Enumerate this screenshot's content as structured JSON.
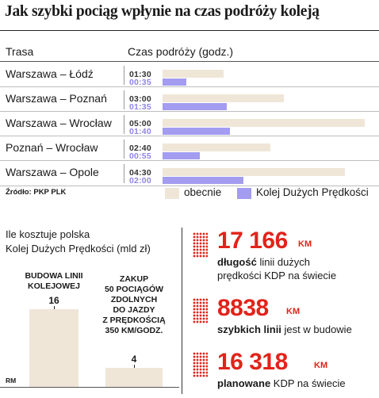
{
  "title": "Jak szybki pociąg wpłynie na czas podróży koleją",
  "chart1_headers": {
    "route": "Trasa",
    "time": "Czas podróży (godz.)"
  },
  "source": "Źródło: PKP PLK",
  "legend": {
    "current": "obecnie",
    "kdp": "Kolej Dużych Prędkości"
  },
  "colors": {
    "current": "#efe6d8",
    "kdp": "#a39cf0",
    "red": "#e2231a",
    "gray_bar": "#efe6d8"
  },
  "chart_data": [
    {
      "type": "bar",
      "orientation": "horizontal",
      "xlabel": "Czas podróży (godz.)",
      "categories": [
        "Warszawa – Łódź",
        "Warszawa – Poznań",
        "Warszawa – Wrocław",
        "Poznań – Wrocław",
        "Warszawa – Opole"
      ],
      "labels_current": [
        "01:30",
        "03:00",
        "05:00",
        "02:40",
        "04:30"
      ],
      "labels_kdp": [
        "00:35",
        "01:35",
        "01:40",
        "00:55",
        "02:00"
      ],
      "series": [
        {
          "name": "obecnie",
          "values": [
            1.5,
            3.0,
            5.0,
            2.667,
            4.5
          ]
        },
        {
          "name": "Kolej Dużych Prędkości",
          "values": [
            0.583,
            1.583,
            1.667,
            0.917,
            2.0
          ]
        }
      ],
      "xlim": [
        0,
        5
      ]
    },
    {
      "type": "bar",
      "title": "Ile kosztuje polska Kolej Dużych Prędkości (mld zł)",
      "categories": [
        "BUDOWA LINII KOLEJOWEJ",
        "ZAKUP 50 POCIĄGÓW ZDOLNYCH DO JAZDY Z PRĘDKOŚCIĄ 350 KM/GODZ."
      ],
      "values": [
        16,
        4
      ],
      "axis_label": "RM"
    }
  ],
  "chart2_title_lines": [
    "Ile kosztuje polska",
    "Kolej Dużych Prędkości (mld zł)"
  ],
  "chart2_captions": [
    [
      "BUDOWA LINII",
      "KOLEJOWEJ"
    ],
    [
      "ZAKUP",
      "50 POCIĄGÓW",
      "ZDOLNYCH",
      "DO JAZDY",
      "Z PRĘDKOŚCIĄ",
      "350 KM/GODZ."
    ]
  ],
  "chart2_value_labels": [
    "16",
    "4"
  ],
  "facts": [
    {
      "number": "17 166",
      "unit": "KM",
      "bold": "długość",
      "text1": " linii dużych",
      "text2": "prędkości KDP na świecie"
    },
    {
      "number": "8838",
      "unit": "KM",
      "bold": "szybkich linii",
      "text1": " jest w budowie",
      "text2": ""
    },
    {
      "number": "16 318",
      "unit": "KM",
      "bold": "planowane",
      "text1": " KDP na świecie",
      "text2": ""
    }
  ]
}
